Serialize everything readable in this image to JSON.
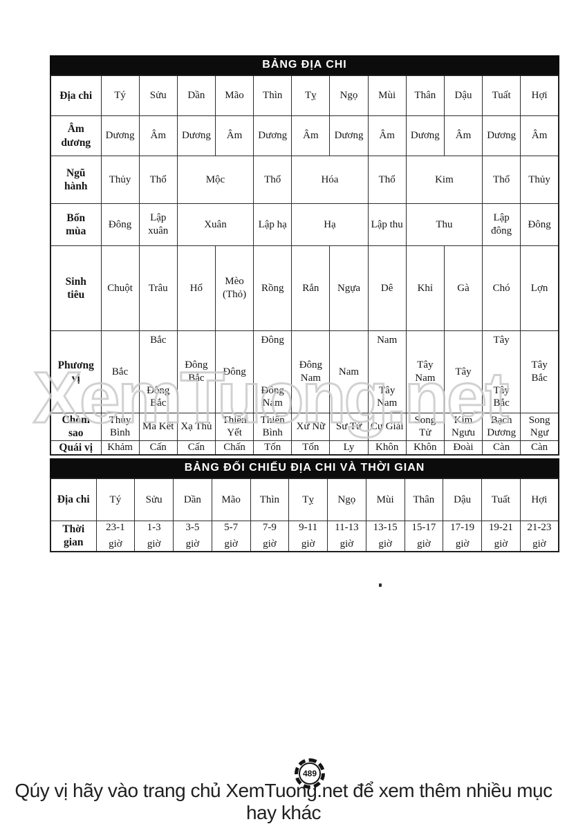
{
  "colors": {
    "title_bar_bg": "#0c0c0c",
    "title_bar_text": "#ffffff",
    "table_border": "#2b2b2b",
    "watermark": "#c9c9c9"
  },
  "watermark_text": "XemTuong.net",
  "footer": {
    "text": "Qúy vị hãy vào trang chủ XemTuong.net để xem thêm nhiều mục hay khác",
    "page_badge": "489"
  },
  "table1": {
    "title": "BẢNG ĐỊA CHI",
    "rows": [
      {
        "label": "Địa chi",
        "cells": [
          {
            "t": "Tý"
          },
          {
            "t": "Sửu"
          },
          {
            "t": "Dần"
          },
          {
            "t": "Mão"
          },
          {
            "t": "Thìn"
          },
          {
            "t": "Tỵ"
          },
          {
            "t": "Ngọ"
          },
          {
            "t": "Mùi"
          },
          {
            "t": "Thân"
          },
          {
            "t": "Dậu"
          },
          {
            "t": "Tuất"
          },
          {
            "t": "Hợi"
          }
        ]
      },
      {
        "label": "Âm dương",
        "cells": [
          {
            "t": "Dương"
          },
          {
            "t": "Âm"
          },
          {
            "t": "Dương"
          },
          {
            "t": "Âm"
          },
          {
            "t": "Dương"
          },
          {
            "t": "Âm"
          },
          {
            "t": "Dương"
          },
          {
            "t": "Âm"
          },
          {
            "t": "Dương"
          },
          {
            "t": "Âm"
          },
          {
            "t": "Dương"
          },
          {
            "t": "Âm"
          }
        ]
      },
      {
        "label": "Ngũ hành",
        "cells": [
          {
            "t": "Thủy"
          },
          {
            "t": "Thổ"
          },
          {
            "t": "Mộc",
            "span": 2
          },
          {
            "t": "Thổ"
          },
          {
            "t": "Hóa",
            "span": 2
          },
          {
            "t": "Thổ"
          },
          {
            "t": "Kim",
            "span": 2
          },
          {
            "t": "Thổ"
          },
          {
            "t": "Thủy"
          }
        ]
      },
      {
        "label": "Bốn mùa",
        "cells": [
          {
            "t": "Đông"
          },
          {
            "t": "Lập xuân"
          },
          {
            "t": "Xuân",
            "span": 2
          },
          {
            "t": "Lập hạ"
          },
          {
            "t": "Hạ",
            "span": 2
          },
          {
            "t": "Lập thu"
          },
          {
            "t": "Thu",
            "span": 2
          },
          {
            "t": "Lập đông"
          },
          {
            "t": "Đông"
          }
        ]
      },
      {
        "label": "Sinh tiêu",
        "cells": [
          {
            "t": "Chuột"
          },
          {
            "t": "Trâu"
          },
          {
            "t": "Hổ"
          },
          {
            "t": "Mèo (Thỏ)"
          },
          {
            "t": "Rồng"
          },
          {
            "t": "Rắn"
          },
          {
            "t": "Ngựa"
          },
          {
            "t": "Dê"
          },
          {
            "t": "Khỉ"
          },
          {
            "t": "Gà"
          },
          {
            "t": "Chó"
          },
          {
            "t": "Lợn"
          }
        ]
      },
      {
        "label": "Phương vị",
        "split": true,
        "cells": [
          {
            "t": "Bắc"
          },
          {
            "lines": [
              "Bắc",
              "Đông Bắc"
            ]
          },
          {
            "t": "Đông Bắc"
          },
          {
            "t": "Đông"
          },
          {
            "lines": [
              "Đông",
              "Đông Nam"
            ]
          },
          {
            "t": "Đông Nam"
          },
          {
            "t": "Nam"
          },
          {
            "lines": [
              "Nam",
              "Tây Nam"
            ]
          },
          {
            "t": "Tây Nam"
          },
          {
            "t": "Tây"
          },
          {
            "lines": [
              "Tây",
              "Tây Bắc"
            ]
          },
          {
            "t": "Tây Bắc"
          }
        ]
      },
      {
        "label": "Chòm sao",
        "cells": [
          {
            "t": "Thủy Bình"
          },
          {
            "t": "Ma Kết"
          },
          {
            "t": "Xạ Thủ"
          },
          {
            "t": "Thiên Yết"
          },
          {
            "t": "Thiên Bình"
          },
          {
            "t": "Xử Nữ"
          },
          {
            "t": "Sư Tử"
          },
          {
            "t": "Cự Giải"
          },
          {
            "t": "Song Tử"
          },
          {
            "t": "Kim Ngưu"
          },
          {
            "t": "Bạch Dương"
          },
          {
            "t": "Song Ngư"
          }
        ]
      },
      {
        "label": "Quái vị",
        "cells": [
          {
            "t": "Khảm"
          },
          {
            "t": "Cấn"
          },
          {
            "t": "Cấn"
          },
          {
            "t": "Chấn"
          },
          {
            "t": "Tốn"
          },
          {
            "t": "Tốn"
          },
          {
            "t": "Ly"
          },
          {
            "t": "Khôn"
          },
          {
            "t": "Khôn"
          },
          {
            "t": "Đoài"
          },
          {
            "t": "Càn"
          },
          {
            "t": "Càn"
          }
        ]
      }
    ]
  },
  "table2": {
    "title": "BẢNG ĐỐI CHIẾU ĐỊA CHI VÀ THỜI GIAN",
    "rows": [
      {
        "label": "Địa chi",
        "cells": [
          {
            "t": "Tý"
          },
          {
            "t": "Sửu"
          },
          {
            "t": "Dần"
          },
          {
            "t": "Mão"
          },
          {
            "t": "Thìn"
          },
          {
            "t": "Tỵ"
          },
          {
            "t": "Ngọ"
          },
          {
            "t": "Mùi"
          },
          {
            "t": "Thân"
          },
          {
            "t": "Dậu"
          },
          {
            "t": "Tuất"
          },
          {
            "t": "Hợi"
          }
        ]
      },
      {
        "label": "Thời gian",
        "cells": [
          {
            "lines": [
              "23-1",
              "giờ"
            ]
          },
          {
            "lines": [
              "1-3",
              "giờ"
            ]
          },
          {
            "lines": [
              "3-5",
              "giờ"
            ]
          },
          {
            "lines": [
              "5-7",
              "giờ"
            ]
          },
          {
            "lines": [
              "7-9",
              "giờ"
            ]
          },
          {
            "lines": [
              "9-11",
              "giờ"
            ]
          },
          {
            "lines": [
              "11-13",
              "giờ"
            ]
          },
          {
            "lines": [
              "13-15",
              "giờ"
            ]
          },
          {
            "lines": [
              "15-17",
              "giờ"
            ]
          },
          {
            "lines": [
              "17-19",
              "giờ"
            ]
          },
          {
            "lines": [
              "19-21",
              "giờ"
            ]
          },
          {
            "lines": [
              "21-23",
              "giờ"
            ]
          }
        ]
      }
    ]
  }
}
